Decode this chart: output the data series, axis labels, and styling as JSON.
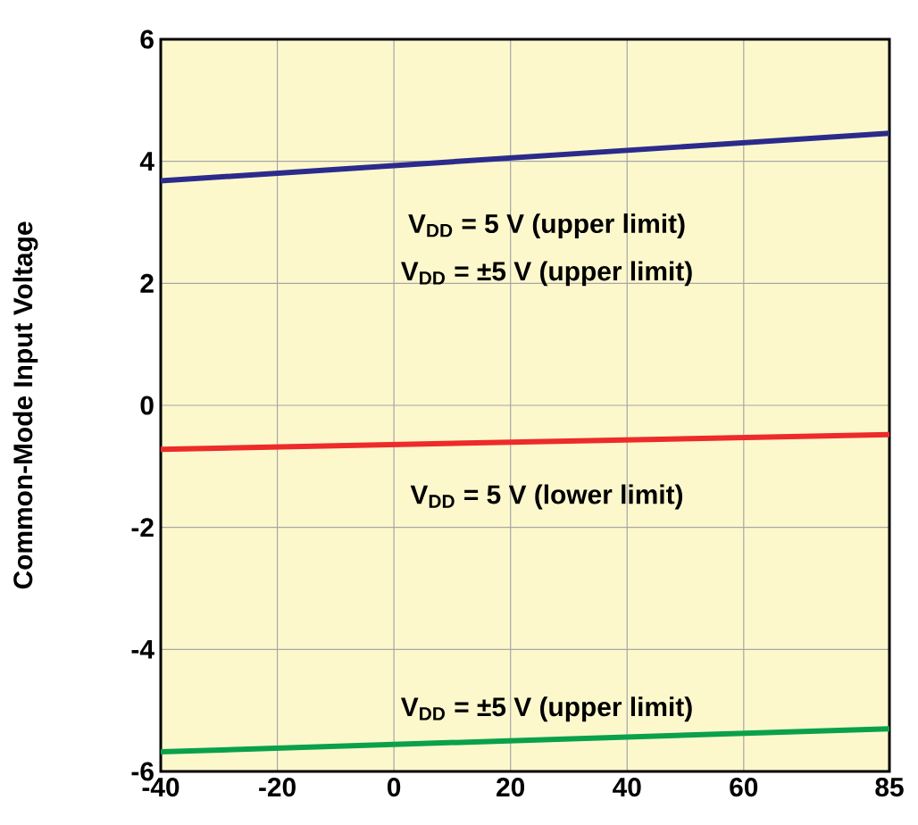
{
  "chart_data": {
    "type": "line",
    "ylabel": "Common-Mode Input Voltage",
    "xlim": [
      -40,
      85
    ],
    "ylim": [
      -6,
      6
    ],
    "xticks": [
      -40,
      -20,
      0,
      20,
      40,
      60,
      85
    ],
    "yticks": [
      -6,
      -4,
      -2,
      0,
      2,
      4,
      6
    ],
    "grid": true,
    "x": [
      -40,
      85
    ],
    "series": [
      {
        "color": "#2b2b8c",
        "values": [
          3.68,
          4.46
        ]
      },
      {
        "color": "#ee2a2a",
        "values": [
          -0.72,
          -0.48
        ]
      },
      {
        "color": "#0aa14b",
        "values": [
          -5.68,
          -5.3
        ]
      }
    ],
    "annotations": [
      "V$_{DD}$ = 5 V (upper limit)",
      "V$_{DD}$ = ±5 V (upper limit)",
      "V$_{DD}$ = 5 V (lower limit)",
      "V$_{DD}$ = ±5 V (upper limit)"
    ]
  }
}
